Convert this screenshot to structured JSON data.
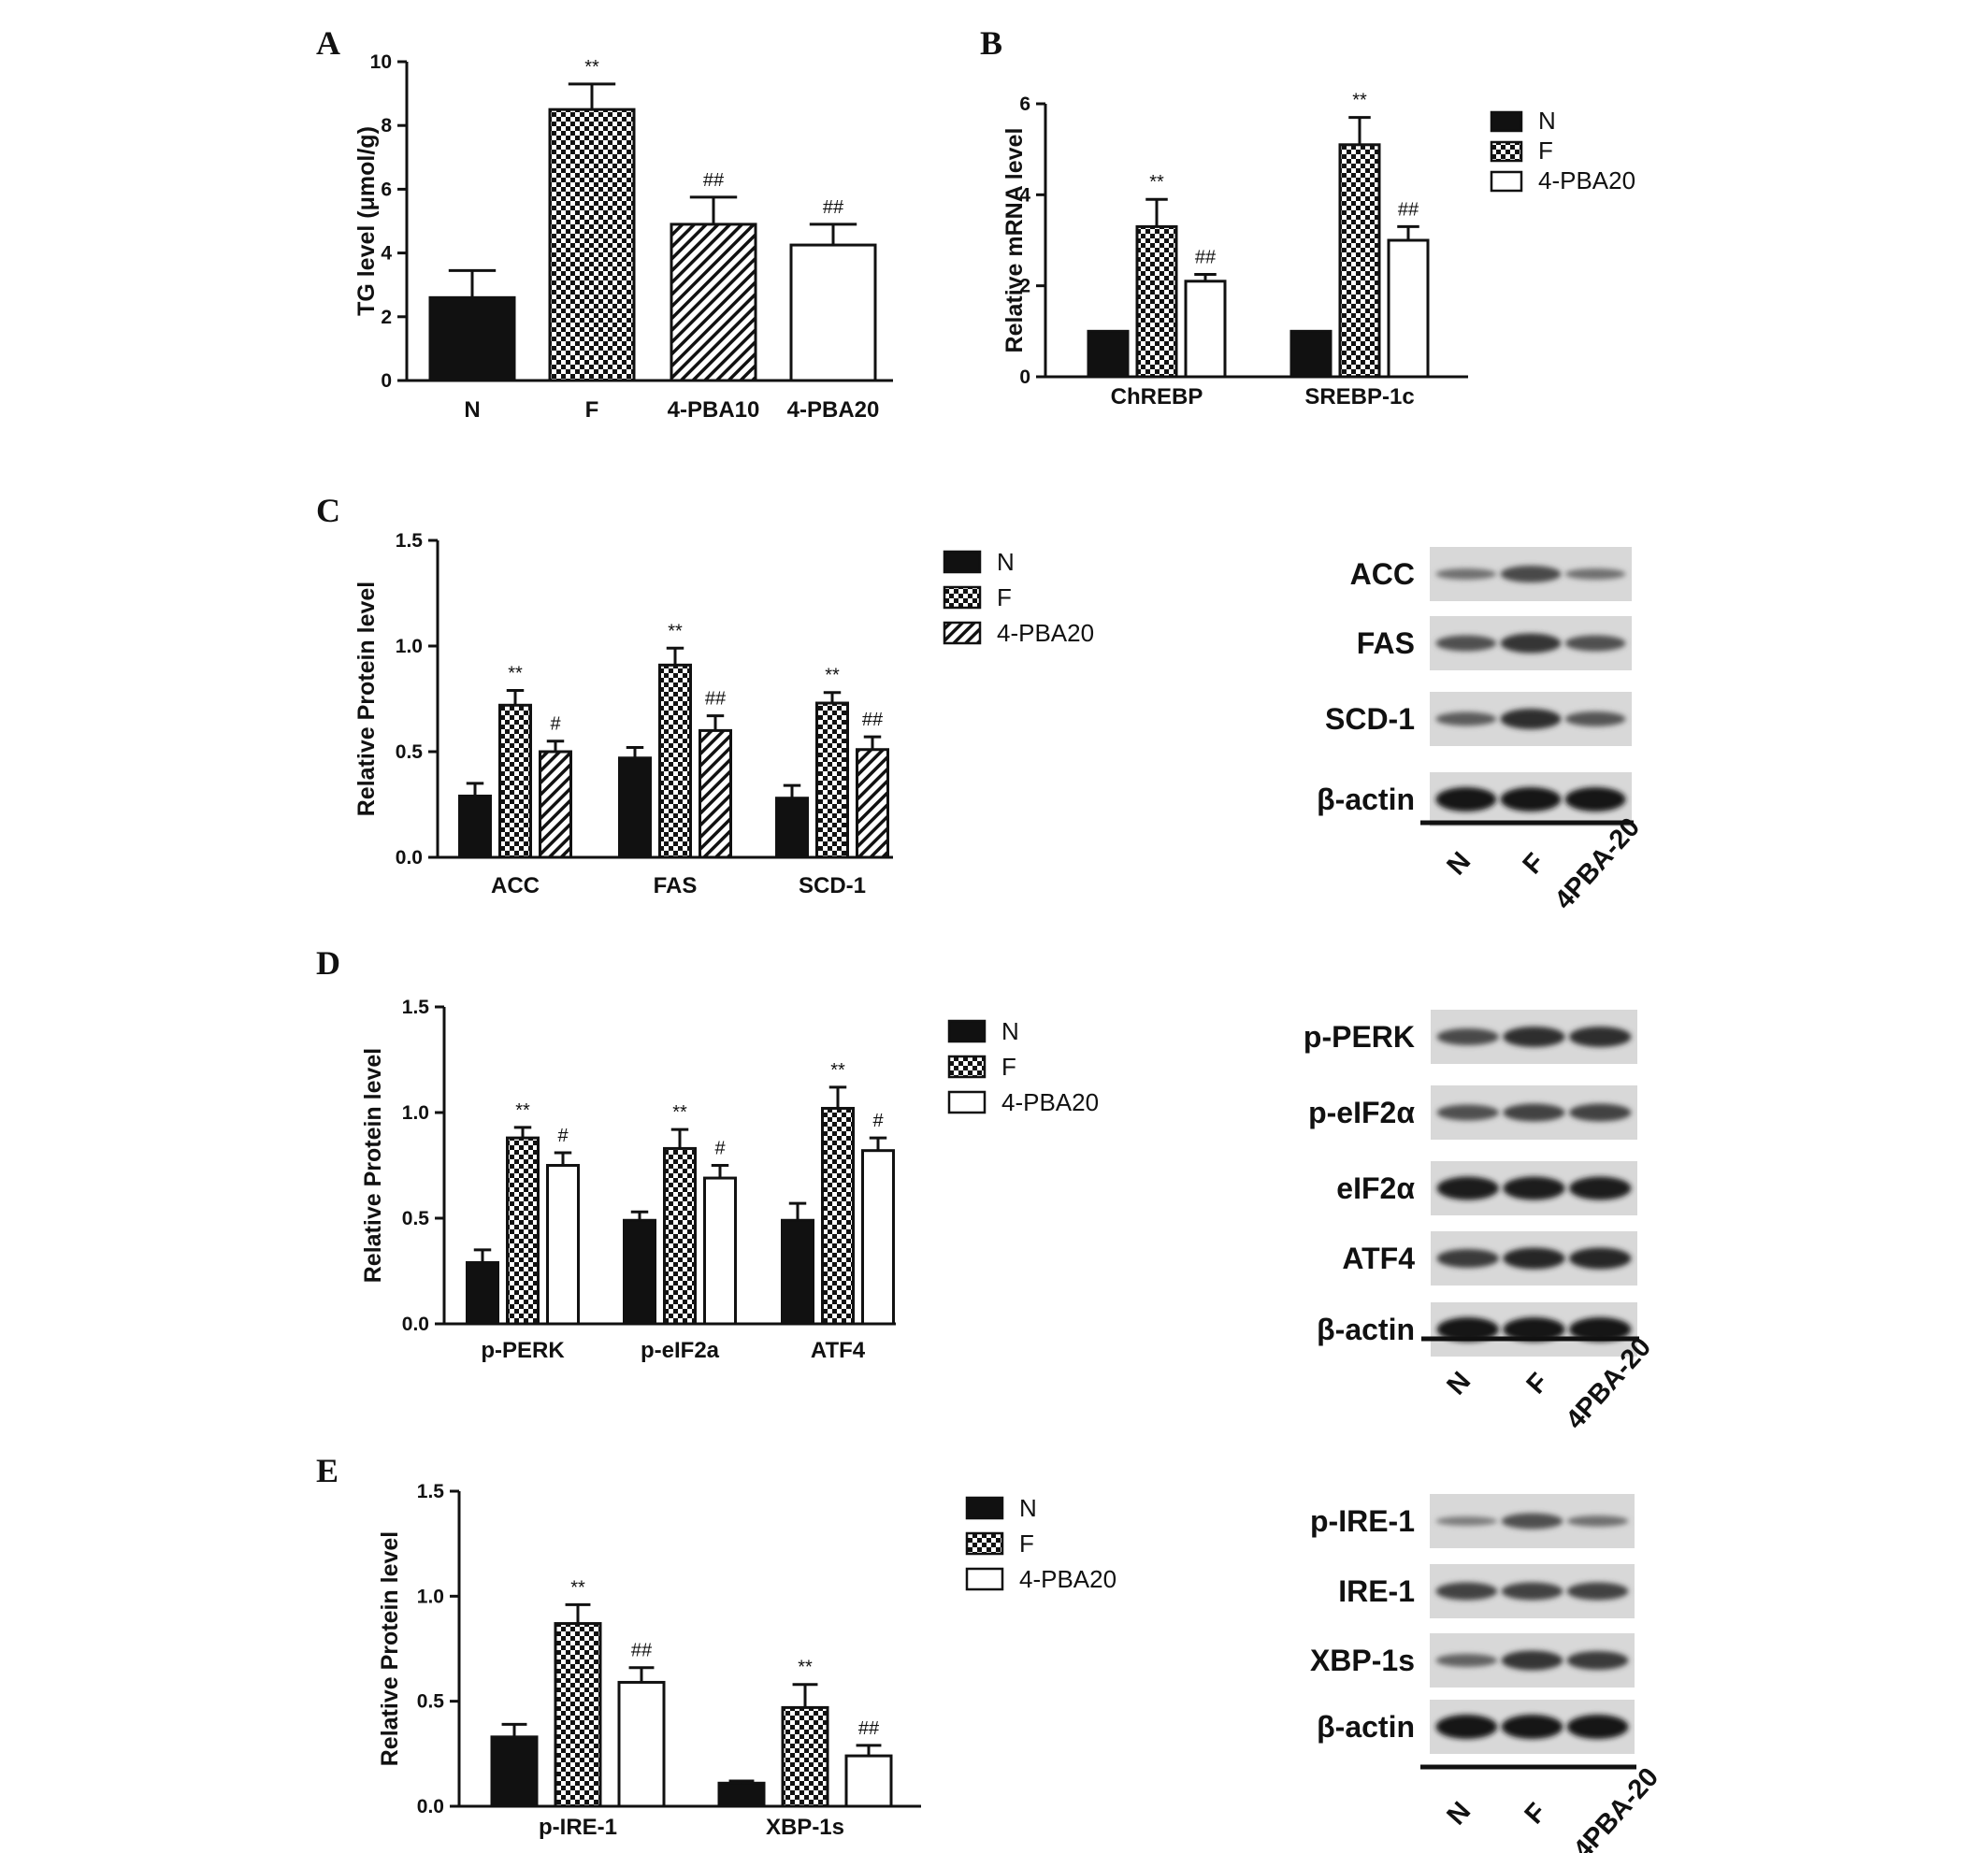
{
  "patterns": {
    "N": "solid-black",
    "F": "checkerboard",
    "4-PBA10": "diagonal-hatch",
    "4-PBA20": "white-or-hatch"
  },
  "colors": {
    "ink": "#111111",
    "background": "#ffffff"
  },
  "chart_data": [
    {
      "id": "A",
      "panel": "A",
      "type": "bar",
      "ylabel": "TG level (μmol/g)",
      "xlabel": "",
      "ylim": [
        0,
        10
      ],
      "yticks": [
        0,
        2,
        4,
        6,
        8,
        10
      ],
      "categories": [
        "N",
        "F",
        "4-PBA10",
        "4-PBA20"
      ],
      "values": [
        2.6,
        8.5,
        4.9,
        4.25
      ],
      "errors": [
        0.85,
        0.8,
        0.85,
        0.65
      ],
      "annotations": [
        "",
        "**",
        "##",
        "##"
      ],
      "fills": [
        "N",
        "F",
        "4-PBA10",
        "4-PBA20"
      ],
      "legend": []
    },
    {
      "id": "B",
      "panel": "B",
      "type": "bar",
      "ylabel": "Relative mRNA level",
      "xlabel": "",
      "ylim": [
        0,
        6
      ],
      "yticks": [
        0,
        2,
        4,
        6
      ],
      "categories": [
        "ChREBP",
        "SREBP-1c"
      ],
      "series": [
        {
          "name": "N",
          "fill": "N",
          "values": [
            1.0,
            1.0
          ],
          "errors": [
            0,
            0
          ],
          "annotations": [
            "",
            ""
          ]
        },
        {
          "name": "F",
          "fill": "F",
          "values": [
            3.3,
            5.1
          ],
          "errors": [
            0.6,
            0.6
          ],
          "annotations": [
            "**",
            "**"
          ]
        },
        {
          "name": "4-PBA20",
          "fill": "4-PBA20",
          "values": [
            2.1,
            3.0
          ],
          "errors": [
            0.15,
            0.3
          ],
          "annotations": [
            "##",
            "##"
          ]
        }
      ],
      "legend": [
        "N",
        "F",
        "4-PBA20"
      ]
    },
    {
      "id": "C",
      "panel": "C",
      "type": "bar",
      "ylabel": "Relative Protein level",
      "xlabel": "",
      "ylim": [
        0,
        1.5
      ],
      "yticks": [
        "0.0",
        "0.5",
        "1.0",
        "1.5"
      ],
      "categories": [
        "ACC",
        "FAS",
        "SCD-1"
      ],
      "series": [
        {
          "name": "N",
          "fill": "N",
          "values": [
            0.29,
            0.47,
            0.28
          ],
          "errors": [
            0.06,
            0.05,
            0.06
          ],
          "annotations": [
            "",
            "",
            ""
          ]
        },
        {
          "name": "F",
          "fill": "F",
          "values": [
            0.72,
            0.91,
            0.73
          ],
          "errors": [
            0.07,
            0.08,
            0.05
          ],
          "annotations": [
            "**",
            "**",
            "**"
          ]
        },
        {
          "name": "4-PBA20",
          "fill": "4-PBA10",
          "values": [
            0.5,
            0.6,
            0.51
          ],
          "errors": [
            0.05,
            0.07,
            0.06
          ],
          "annotations": [
            "#",
            "##",
            "##"
          ]
        }
      ],
      "legend": [
        "N",
        "F",
        "4-PBA20"
      ]
    },
    {
      "id": "D",
      "panel": "D",
      "type": "bar",
      "ylabel": "Relative Protein level",
      "xlabel": "",
      "ylim": [
        0,
        1.5
      ],
      "yticks": [
        "0.0",
        "0.5",
        "1.0",
        "1.5"
      ],
      "categories": [
        "p-PERK",
        "p-eIF2a",
        "ATF4"
      ],
      "series": [
        {
          "name": "N",
          "fill": "N",
          "values": [
            0.29,
            0.49,
            0.49
          ],
          "errors": [
            0.06,
            0.04,
            0.08
          ],
          "annotations": [
            "",
            "",
            ""
          ]
        },
        {
          "name": "F",
          "fill": "F",
          "values": [
            0.88,
            0.83,
            1.02
          ],
          "errors": [
            0.05,
            0.09,
            0.1
          ],
          "annotations": [
            "**",
            "**",
            "**"
          ]
        },
        {
          "name": "4-PBA20",
          "fill": "4-PBA20",
          "values": [
            0.75,
            0.69,
            0.82
          ],
          "errors": [
            0.06,
            0.06,
            0.06
          ],
          "annotations": [
            "#",
            "#",
            "#"
          ]
        }
      ],
      "legend": [
        "N",
        "F",
        "4-PBA20"
      ]
    },
    {
      "id": "E",
      "panel": "E",
      "type": "bar",
      "ylabel": "Relative Protein level",
      "xlabel": "",
      "ylim": [
        0,
        1.5
      ],
      "yticks": [
        "0.0",
        "0.5",
        "1.0",
        "1.5"
      ],
      "categories": [
        "p-IRE-1",
        "XBP-1s"
      ],
      "series": [
        {
          "name": "N",
          "fill": "N",
          "values": [
            0.33,
            0.11
          ],
          "errors": [
            0.06,
            0.01
          ],
          "annotations": [
            "",
            ""
          ]
        },
        {
          "name": "F",
          "fill": "F",
          "values": [
            0.87,
            0.47
          ],
          "errors": [
            0.09,
            0.11
          ],
          "annotations": [
            "**",
            "**"
          ]
        },
        {
          "name": "4-PBA20",
          "fill": "4-PBA20",
          "values": [
            0.59,
            0.24
          ],
          "errors": [
            0.07,
            0.05
          ],
          "annotations": [
            "##",
            "##"
          ]
        }
      ],
      "legend": [
        "N",
        "F",
        "4-PBA20"
      ]
    }
  ],
  "blots": [
    {
      "panel": "C",
      "rows": [
        "ACC",
        "FAS",
        "SCD-1",
        "β-actin"
      ],
      "lanes": [
        "N",
        "F",
        "4PBA-20"
      ],
      "intensity": [
        [
          0.3,
          0.6,
          0.3
        ],
        [
          0.55,
          0.75,
          0.55
        ],
        [
          0.45,
          0.8,
          0.5
        ],
        [
          1.0,
          1.0,
          1.0
        ]
      ]
    },
    {
      "panel": "D",
      "rows": [
        "p-PERK",
        "p-eIF2α",
        "eIF2α",
        "ATF4",
        "β-actin"
      ],
      "lanes": [
        "N",
        "F",
        "4PBA-20"
      ],
      "intensity": [
        [
          0.6,
          0.8,
          0.8
        ],
        [
          0.55,
          0.65,
          0.65
        ],
        [
          0.95,
          0.95,
          0.95
        ],
        [
          0.7,
          0.85,
          0.85
        ],
        [
          1.0,
          1.0,
          1.0
        ]
      ]
    },
    {
      "panel": "E",
      "rows": [
        "p-IRE-1",
        "IRE-1",
        "XBP-1s",
        "β-actin"
      ],
      "lanes": [
        "N",
        "F",
        "4PBA-20"
      ],
      "intensity": [
        [
          0.2,
          0.55,
          0.3
        ],
        [
          0.65,
          0.65,
          0.65
        ],
        [
          0.4,
          0.75,
          0.7
        ],
        [
          1.0,
          1.0,
          1.0
        ]
      ]
    }
  ]
}
